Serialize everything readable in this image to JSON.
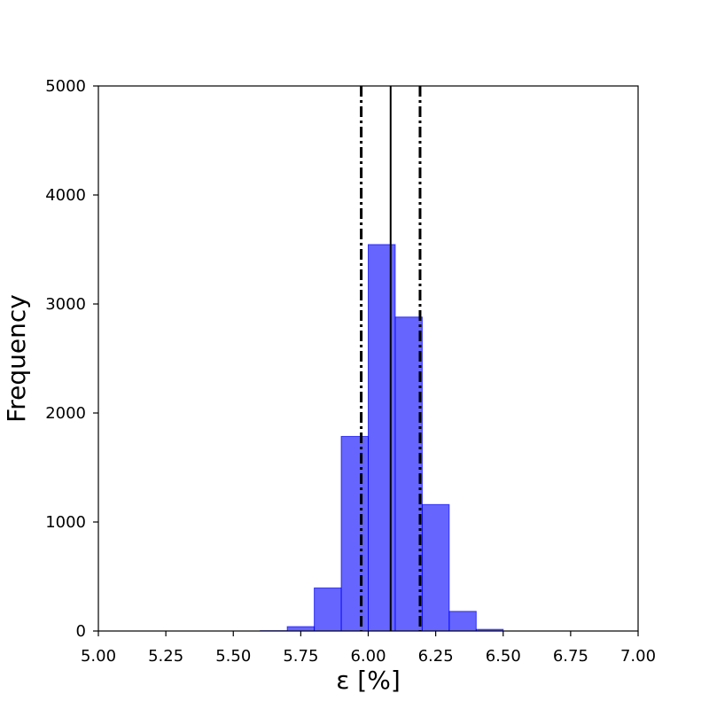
{
  "chart_data": {
    "type": "bar",
    "title": "",
    "xlabel": "ε [%]",
    "ylabel": "Frequency",
    "xlim": [
      5.0,
      7.0
    ],
    "ylim": [
      0,
      5000
    ],
    "xticks": [
      "5.00",
      "5.25",
      "5.50",
      "5.75",
      "6.00",
      "6.25",
      "6.50",
      "6.75",
      "7.00"
    ],
    "yticks": [
      "0",
      "1000",
      "2000",
      "3000",
      "4000",
      "5000"
    ],
    "grid": false,
    "legend": "none",
    "bar_color": "#0000ff",
    "bar_opacity": 0.6,
    "bins": [
      {
        "x0": 5.6,
        "x1": 5.7,
        "count": 3
      },
      {
        "x0": 5.7,
        "x1": 5.8,
        "count": 40
      },
      {
        "x0": 5.8,
        "x1": 5.9,
        "count": 395
      },
      {
        "x0": 5.9,
        "x1": 6.0,
        "count": 1785
      },
      {
        "x0": 6.0,
        "x1": 6.1,
        "count": 3545
      },
      {
        "x0": 6.1,
        "x1": 6.2,
        "count": 2880
      },
      {
        "x0": 6.2,
        "x1": 6.3,
        "count": 1160
      },
      {
        "x0": 6.3,
        "x1": 6.4,
        "count": 180
      },
      {
        "x0": 6.4,
        "x1": 6.5,
        "count": 15
      }
    ],
    "vlines": [
      {
        "x": 5.974,
        "style": "dashdot"
      },
      {
        "x": 6.083,
        "style": "solid"
      },
      {
        "x": 6.192,
        "style": "dashdot"
      }
    ]
  }
}
